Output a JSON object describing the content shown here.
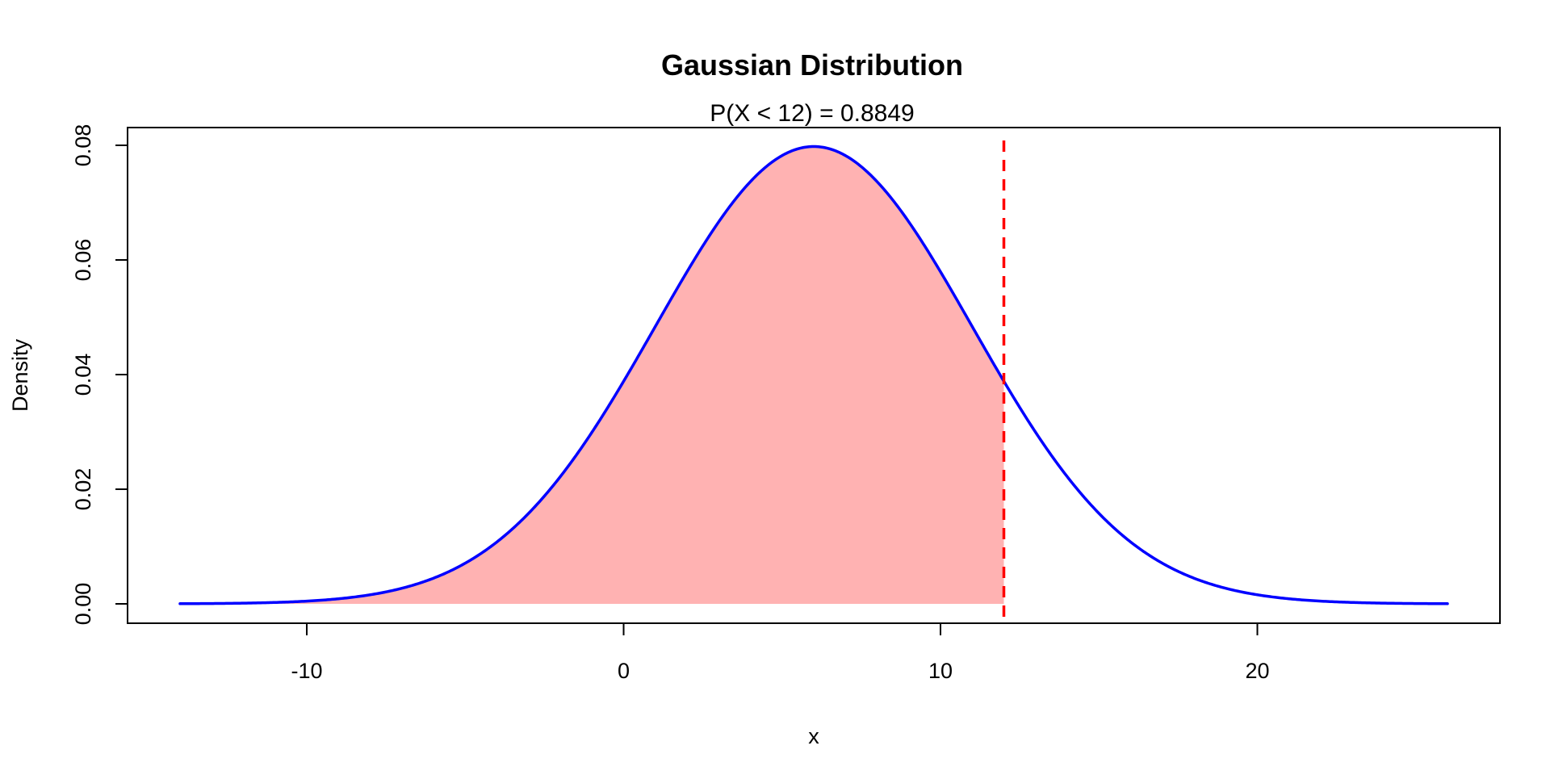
{
  "chart_data": {
    "type": "area",
    "title": "Gaussian Distribution",
    "subtitle": "P(X < 12) = 0.8849",
    "xlabel": "x",
    "ylabel": "Density",
    "xlim": [
      -14,
      26
    ],
    "ylim": [
      0,
      0.08
    ],
    "x_ticks": [
      -10,
      0,
      10,
      20
    ],
    "x_tick_labels": [
      "-10",
      "0",
      "10",
      "20"
    ],
    "y_ticks": [
      0,
      0.02,
      0.04,
      0.06,
      0.08
    ],
    "y_tick_labels": [
      "0.00",
      "0.02",
      "0.04",
      "0.06",
      "0.08"
    ],
    "distribution": {
      "mean": 6,
      "sd": 5
    },
    "curve_range": [
      -14,
      26
    ],
    "cutoff": 12,
    "probability": 0.8849,
    "grid": false,
    "colors": {
      "curve": "#0000ff",
      "shade": "#ffb2b2",
      "cutoff_line": "#ff0000"
    }
  }
}
